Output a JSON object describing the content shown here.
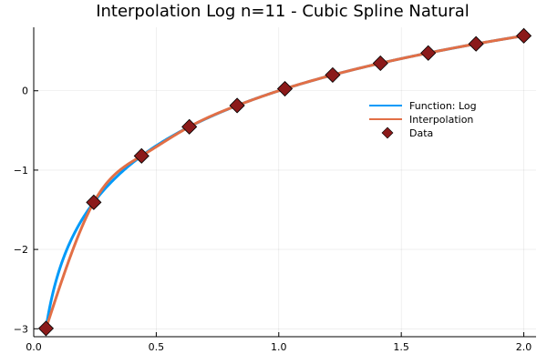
{
  "chart_data": {
    "type": "line",
    "title": "Interpolation Log n=11 - Cubic Spline Natural",
    "xlabel": "",
    "ylabel": "",
    "xlim": [
      0.0,
      2.05
    ],
    "ylim": [
      -3.1,
      0.8
    ],
    "xticks": [
      0.0,
      0.5,
      1.0,
      1.5,
      2.0
    ],
    "xtick_labels": [
      "0.0",
      "0.5",
      "1.0",
      "1.5",
      "2.0"
    ],
    "yticks": [
      -3,
      -2,
      -1,
      0
    ],
    "ytick_labels": [
      "−3",
      "−2",
      "−1",
      "0"
    ],
    "grid": true,
    "legend_position": "upper-right",
    "series": [
      {
        "name": "Function: Log",
        "kind": "line",
        "color": "#009af9"
      },
      {
        "name": "Interpolation",
        "kind": "line",
        "color": "#e26f46"
      },
      {
        "name": "Data",
        "kind": "scatter",
        "marker": "diamond",
        "color": "#8b1a1a",
        "x": [
          0.05,
          0.245,
          0.44,
          0.635,
          0.83,
          1.025,
          1.22,
          1.415,
          1.61,
          1.805,
          2.0
        ],
        "y": [
          -2.996,
          -1.406,
          -0.821,
          -0.454,
          -0.186,
          0.025,
          0.199,
          0.347,
          0.476,
          0.591,
          0.693
        ]
      }
    ]
  }
}
